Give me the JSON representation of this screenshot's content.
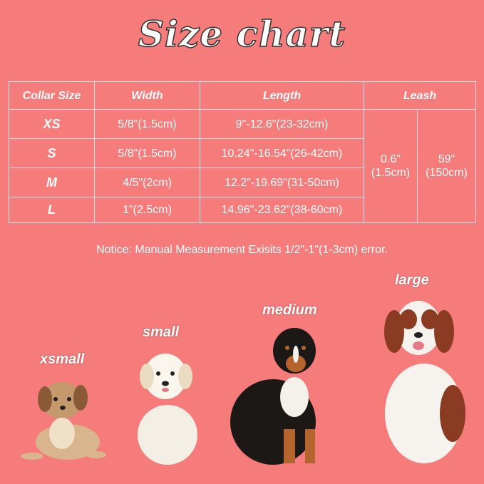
{
  "title": "Size chart",
  "table": {
    "headers": [
      "Collar Size",
      "Width",
      "Length",
      "Leash"
    ],
    "rows": [
      {
        "size": "XS",
        "width": "5/8\"(1.5cm)",
        "length": "9\"-12.6\"(23-32cm)"
      },
      {
        "size": "S",
        "width": "5/8\"(1.5cm)",
        "length": "10.24\"-16.54\"(26-42cm)"
      },
      {
        "size": "M",
        "width": "4/5\"(2cm)",
        "length": "12.2\"-19.69\"(31-50cm)"
      },
      {
        "size": "L",
        "width": "1\"(2.5cm)",
        "length": "14.96\"-23.62\"(38-60cm)"
      }
    ],
    "leash_width": {
      "inch": "0.6\"",
      "cm": "(1.5cm)"
    },
    "leash_length": {
      "inch": "59\"",
      "cm": "(150cm)"
    }
  },
  "notice": "Notice: Manual Measurement Exisits 1/2\"-1\"(1-3cm) error.",
  "dogs": [
    {
      "label": "xsmall",
      "color": "#c9a37a"
    },
    {
      "label": "small",
      "color": "#f3ede2"
    },
    {
      "label": "medium",
      "color": "#1e1a18"
    },
    {
      "label": "large",
      "color": "#8a3b22"
    }
  ]
}
